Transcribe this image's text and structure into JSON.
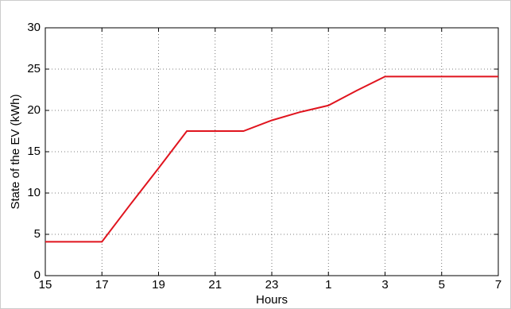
{
  "chart_data": {
    "type": "line",
    "x_label": "Hours",
    "y_label": "State of the EV (kWh)",
    "categories": [
      "15",
      null,
      "17",
      null,
      "19",
      null,
      "21",
      null,
      "23",
      null,
      "1",
      null,
      "3",
      null,
      "5",
      null,
      "7"
    ],
    "values": [
      4.1,
      4.1,
      4.1,
      8.6,
      13.0,
      17.5,
      17.5,
      17.5,
      18.8,
      19.8,
      20.6,
      22.4,
      24.1,
      24.1,
      24.1,
      24.1,
      24.1
    ],
    "color": "#e0141e",
    "ylim": [
      0,
      30
    ],
    "yticks": [
      0,
      5,
      10,
      15,
      20,
      25,
      30
    ],
    "grid": true
  }
}
